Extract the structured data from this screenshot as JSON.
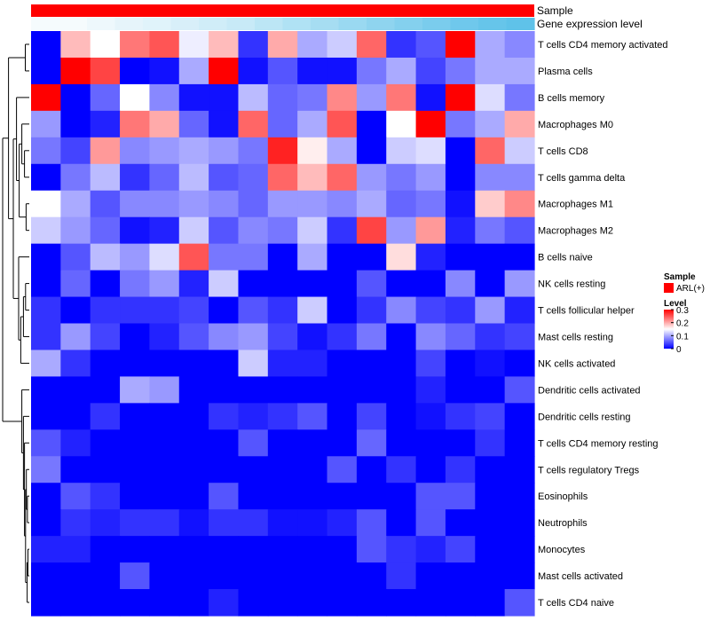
{
  "chart_data": {
    "type": "heatmap",
    "annotations": {
      "sample_label": "Sample",
      "gene_label": "Gene expression level",
      "sample_color": "#ff0000",
      "gene_colors": [
        "#f5fbfd",
        "#f5fbfd",
        "#eef8fc",
        "#e6f4fa",
        "#e0f3fa",
        "#d8eff9",
        "#d0edf8",
        "#c8eaf7",
        "#bce6f5",
        "#b0e2f4",
        "#a6ddf2",
        "#9ad9f1",
        "#8fd4ef",
        "#84d0ee",
        "#7acced",
        "#6fc8ec",
        "#66c5ea",
        "#5fc2e9"
      ]
    },
    "rows": [
      "T cells CD4 memory activated",
      "Plasma cells",
      "B cells memory",
      "Macrophages M0",
      "T cells CD8",
      "T cells gamma delta",
      "Macrophages M1",
      "Macrophages M2",
      "B cells naive",
      "NK cells resting",
      "T cells follicular helper",
      "Mast cells resting",
      "NK cells activated",
      "Dendritic cells activated",
      "Dendritic cells resting",
      "T cells CD4 memory resting",
      "T cells regulatory  Tregs",
      "Eosinophils",
      "Neutrophils",
      "Monocytes",
      "Mast cells activated",
      "T cells CD4 naive"
    ],
    "values": [
      [
        0.0,
        0.19,
        0.15,
        0.23,
        0.25,
        0.14,
        0.19,
        0.03,
        0.2,
        0.1,
        0.12,
        0.24,
        0.03,
        0.05,
        0.3,
        0.1,
        0.08
      ],
      [
        0.0,
        0.3,
        0.26,
        0.0,
        0.01,
        0.1,
        0.3,
        0.01,
        0.05,
        0.01,
        0.01,
        0.07,
        0.1,
        0.04,
        0.07,
        0.1,
        0.1
      ],
      [
        0.3,
        0.0,
        0.06,
        0.15,
        0.08,
        0.01,
        0.01,
        0.11,
        0.06,
        0.07,
        0.22,
        0.09,
        0.23,
        0.01,
        0.3,
        0.13,
        0.07
      ],
      [
        0.09,
        0.0,
        0.02,
        0.23,
        0.2,
        0.06,
        0.01,
        0.24,
        0.06,
        0.1,
        0.25,
        0.0,
        0.15,
        0.3,
        0.07,
        0.1,
        0.2
      ],
      [
        0.07,
        0.04,
        0.21,
        0.08,
        0.09,
        0.1,
        0.09,
        0.07,
        0.28,
        0.16,
        0.1,
        0.0,
        0.12,
        0.13,
        0.0,
        0.24,
        0.12
      ],
      [
        0.0,
        0.07,
        0.11,
        0.03,
        0.06,
        0.11,
        0.05,
        0.06,
        0.24,
        0.19,
        0.24,
        0.09,
        0.07,
        0.09,
        0.0,
        0.08,
        0.08
      ],
      [
        0.15,
        0.1,
        0.05,
        0.08,
        0.08,
        0.09,
        0.08,
        0.06,
        0.09,
        0.09,
        0.08,
        0.1,
        0.06,
        0.07,
        0.01,
        0.18,
        0.22
      ],
      [
        0.12,
        0.09,
        0.06,
        0.01,
        0.02,
        0.12,
        0.05,
        0.08,
        0.07,
        0.12,
        0.03,
        0.26,
        0.09,
        0.21,
        0.02,
        0.07,
        0.05
      ],
      [
        0.0,
        0.05,
        0.11,
        0.09,
        0.13,
        0.25,
        0.07,
        0.07,
        0.0,
        0.1,
        0.0,
        0.0,
        0.17,
        0.02,
        0.0,
        0.0,
        0.0
      ],
      [
        0.0,
        0.06,
        0.0,
        0.07,
        0.09,
        0.02,
        0.12,
        0.0,
        0.0,
        0.0,
        0.0,
        0.05,
        0.0,
        0.0,
        0.08,
        0.0,
        0.09
      ],
      [
        0.03,
        0.0,
        0.03,
        0.03,
        0.03,
        0.04,
        0.0,
        0.05,
        0.03,
        0.12,
        0.0,
        0.03,
        0.08,
        0.04,
        0.03,
        0.09,
        0.02
      ],
      [
        0.03,
        0.09,
        0.04,
        0.0,
        0.02,
        0.05,
        0.08,
        0.09,
        0.04,
        0.01,
        0.03,
        0.07,
        0.0,
        0.08,
        0.06,
        0.03,
        0.04
      ],
      [
        0.1,
        0.03,
        0.0,
        0.0,
        0.0,
        0.0,
        0.0,
        0.12,
        0.02,
        0.02,
        0.0,
        0.0,
        0.0,
        0.04,
        0.0,
        0.01,
        0.0
      ],
      [
        0.0,
        0.0,
        0.0,
        0.1,
        0.09,
        0.0,
        0.0,
        0.0,
        0.0,
        0.0,
        0.0,
        0.0,
        0.0,
        0.02,
        0.0,
        0.0,
        0.05
      ],
      [
        0.0,
        0.0,
        0.03,
        0.0,
        0.0,
        0.0,
        0.03,
        0.02,
        0.03,
        0.05,
        0.0,
        0.04,
        0.0,
        0.01,
        0.03,
        0.04,
        0.0
      ],
      [
        0.05,
        0.02,
        0.0,
        0.0,
        0.0,
        0.0,
        0.0,
        0.05,
        0.0,
        0.0,
        0.0,
        0.06,
        0.0,
        0.0,
        0.0,
        0.03,
        0.0
      ],
      [
        0.07,
        0.0,
        0.0,
        0.0,
        0.0,
        0.0,
        0.0,
        0.0,
        0.0,
        0.0,
        0.05,
        0.0,
        0.03,
        0.0,
        0.03,
        0.0,
        0.0
      ],
      [
        0.0,
        0.05,
        0.03,
        0.0,
        0.0,
        0.0,
        0.05,
        0.0,
        0.0,
        0.0,
        0.0,
        0.0,
        0.0,
        0.05,
        0.05,
        0.0,
        0.0
      ],
      [
        0.0,
        0.03,
        0.02,
        0.03,
        0.03,
        0.01,
        0.03,
        0.03,
        0.01,
        0.01,
        0.02,
        0.05,
        0.0,
        0.05,
        0.0,
        0.0,
        0.0
      ],
      [
        0.02,
        0.02,
        0.0,
        0.0,
        0.0,
        0.0,
        0.0,
        0.0,
        0.0,
        0.0,
        0.0,
        0.05,
        0.03,
        0.02,
        0.04,
        0.0,
        0.0
      ],
      [
        0.0,
        0.0,
        0.0,
        0.05,
        0.0,
        0.0,
        0.0,
        0.0,
        0.0,
        0.0,
        0.0,
        0.0,
        0.03,
        0.0,
        0.0,
        0.0,
        0.0
      ],
      [
        0.0,
        0.0,
        0.0,
        0.0,
        0.0,
        0.0,
        0.02,
        0.0,
        0.0,
        0.0,
        0.0,
        0.0,
        0.0,
        0.0,
        0.0,
        0.0,
        0.05
      ]
    ],
    "value_range": [
      0,
      0.3
    ],
    "colormap": {
      "low": "#0000ff",
      "mid": "#ffffff",
      "high": "#ff0000",
      "mid_value": 0.15
    },
    "legend": {
      "position": "right",
      "sample_title": "Sample",
      "sample_entry": "ARL(+)",
      "level_title": "Level",
      "level_ticks": [
        {
          "value": 0.3,
          "label": "0.3"
        },
        {
          "value": 0.2,
          "label": "0.2"
        },
        {
          "value": 0.1,
          "label": "0.1"
        },
        {
          "value": 0.0,
          "label": "0"
        }
      ]
    }
  }
}
